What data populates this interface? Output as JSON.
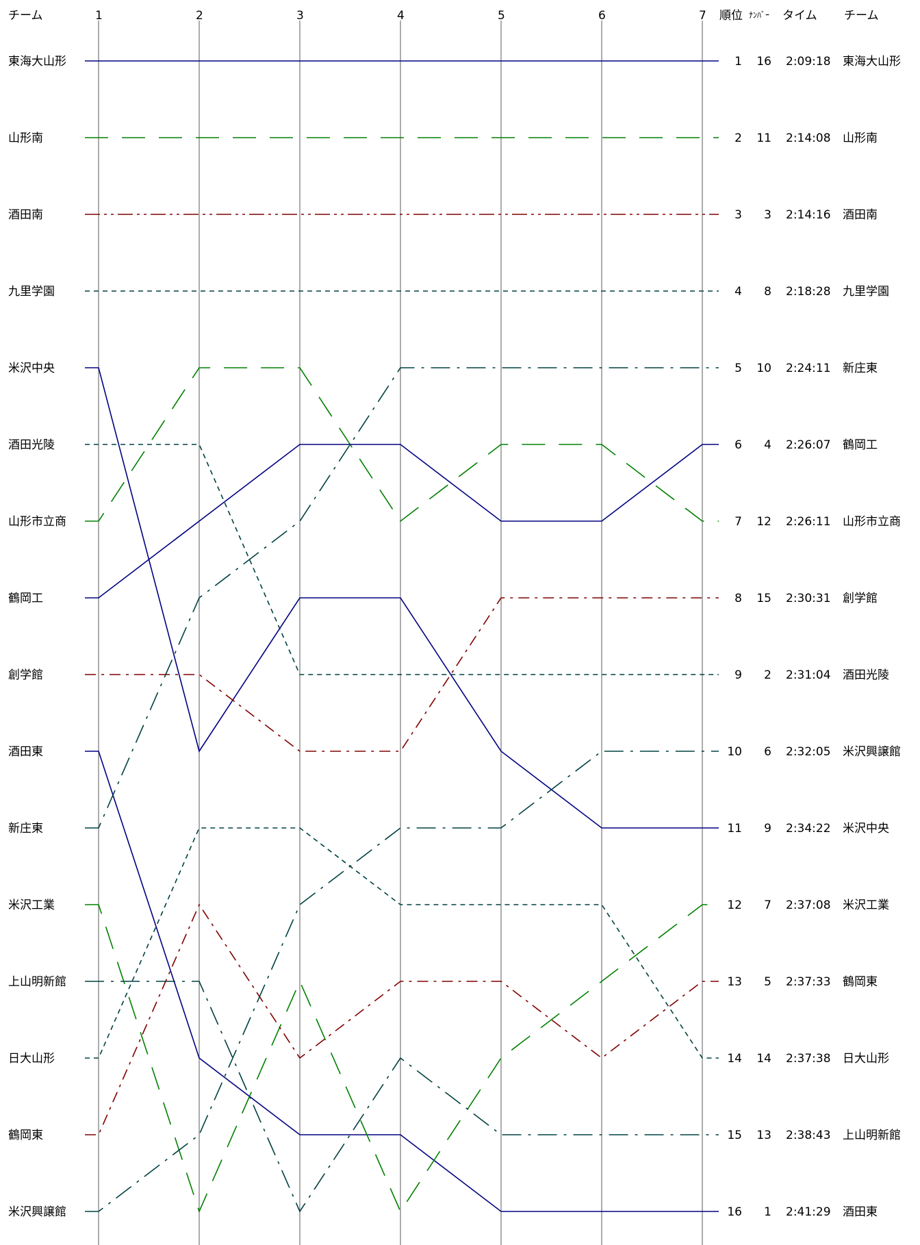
{
  "header": {
    "team_left": "チーム",
    "rank": "順位",
    "number": "ﾅﾝﾊﾞｰ",
    "time": "タイム",
    "team_right": "チーム"
  },
  "chart_data": {
    "type": "line",
    "title": "",
    "xlabel": "",
    "ylabel": "",
    "x": [
      "1",
      "2",
      "3",
      "4",
      "5",
      "6",
      "7"
    ],
    "ylim": [
      1,
      16
    ],
    "y_inverted": true,
    "grid": "vertical lines at each section",
    "start_order": [
      "東海大山形",
      "山形南",
      "酒田南",
      "九里学園",
      "米沢中央",
      "酒田光陵",
      "山形市立商",
      "鶴岡工",
      "創学館",
      "酒田東",
      "新庄東",
      "米沢工業",
      "上山明新館",
      "日大山形",
      "鶴岡東",
      "米沢興譲館"
    ],
    "series": [
      {
        "name": "東海大山形",
        "color": "#000080",
        "dash": "solid",
        "ranks": [
          1,
          1,
          1,
          1,
          1,
          1,
          1
        ],
        "final_rank": "1",
        "number": "16",
        "time": "2:09:18"
      },
      {
        "name": "山形南",
        "color": "#008000",
        "dash": "longdash",
        "ranks": [
          2,
          2,
          2,
          2,
          2,
          2,
          2
        ],
        "final_rank": "2",
        "number": "11",
        "time": "2:14:08"
      },
      {
        "name": "酒田南",
        "color": "#800000",
        "dash": "dashdotdot",
        "ranks": [
          3,
          3,
          3,
          3,
          3,
          3,
          3
        ],
        "final_rank": "3",
        "number": "3",
        "time": "2:14:16"
      },
      {
        "name": "九里学園",
        "color": "#004040",
        "dash": "short",
        "ranks": [
          4,
          4,
          4,
          4,
          4,
          4,
          4
        ],
        "final_rank": "4",
        "number": "8",
        "time": "2:18:28"
      },
      {
        "name": "米沢中央",
        "color": "#000080",
        "dash": "solid",
        "ranks": [
          5,
          10,
          8,
          8,
          10,
          11,
          11
        ],
        "final_rank": "11",
        "number": "9",
        "time": "2:34:22"
      },
      {
        "name": "酒田光陵",
        "color": "#004040",
        "dash": "short",
        "ranks": [
          6,
          6,
          9,
          9,
          9,
          9,
          9
        ],
        "final_rank": "9",
        "number": "2",
        "time": "2:31:04"
      },
      {
        "name": "山形市立商",
        "color": "#008000",
        "dash": "longdash",
        "ranks": [
          7,
          5,
          5,
          7,
          6,
          6,
          7
        ],
        "final_rank": "7",
        "number": "12",
        "time": "2:26:11"
      },
      {
        "name": "鶴岡工",
        "color": "#000080",
        "dash": "solid",
        "ranks": [
          8,
          7,
          6,
          6,
          7,
          7,
          6
        ],
        "final_rank": "6",
        "number": "4",
        "time": "2:26:07"
      },
      {
        "name": "創学館",
        "color": "#800000",
        "dash": "dashdot",
        "ranks": [
          9,
          9,
          10,
          10,
          8,
          8,
          8
        ],
        "final_rank": "8",
        "number": "15",
        "time": "2:30:31"
      },
      {
        "name": "酒田東",
        "color": "#000080",
        "dash": "solid",
        "ranks": [
          10,
          14,
          15,
          15,
          16,
          16,
          16
        ],
        "final_rank": "16",
        "number": "1",
        "time": "2:41:29"
      },
      {
        "name": "新庄東",
        "color": "#004040",
        "dash": "longdashdot",
        "ranks": [
          11,
          8,
          7,
          5,
          5,
          5,
          5
        ],
        "final_rank": "5",
        "number": "10",
        "time": "2:24:11"
      },
      {
        "name": "米沢工業",
        "color": "#008000",
        "dash": "longdash",
        "ranks": [
          12,
          16,
          13,
          16,
          14,
          13,
          12
        ],
        "final_rank": "12",
        "number": "7",
        "time": "2:37:08"
      },
      {
        "name": "上山明新館",
        "color": "#004040",
        "dash": "longdashdot",
        "ranks": [
          13,
          13,
          16,
          14,
          15,
          15,
          15
        ],
        "final_rank": "15",
        "number": "13",
        "time": "2:38:43"
      },
      {
        "name": "日大山形",
        "color": "#004040",
        "dash": "short",
        "ranks": [
          14,
          11,
          11,
          12,
          12,
          12,
          14
        ],
        "final_rank": "14",
        "number": "14",
        "time": "2:37:38"
      },
      {
        "name": "鶴岡東",
        "color": "#800000",
        "dash": "dashdot",
        "ranks": [
          15,
          12,
          14,
          13,
          13,
          14,
          13
        ],
        "final_rank": "13",
        "number": "5",
        "time": "2:37:33"
      },
      {
        "name": "米沢興譲館",
        "color": "#004040",
        "dash": "longdashdot",
        "ranks": [
          16,
          15,
          12,
          11,
          11,
          10,
          10
        ],
        "final_rank": "10",
        "number": "6",
        "time": "2:32:05"
      }
    ]
  }
}
